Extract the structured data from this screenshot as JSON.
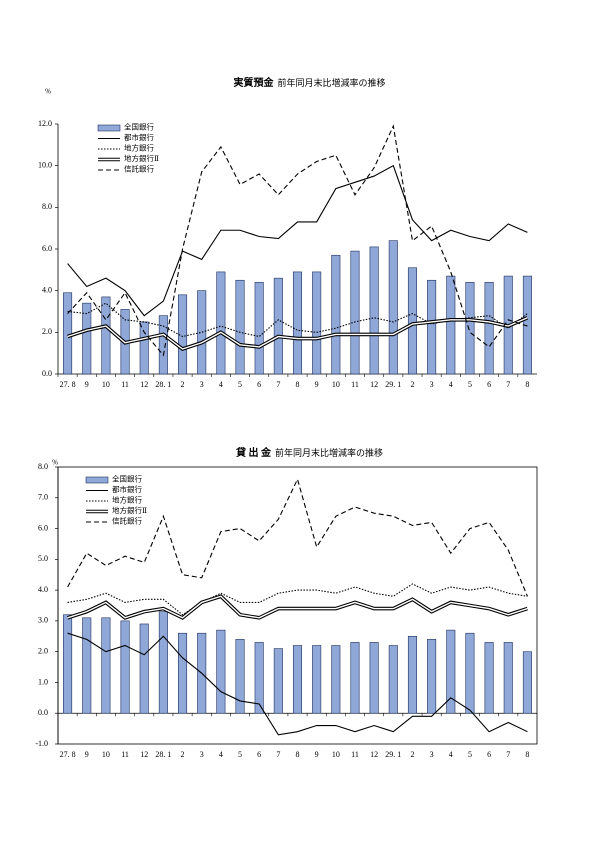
{
  "chart_data": [
    {
      "type": "bar_line",
      "title": "実質預金",
      "subtitle": "前年同月末比増減率の推移",
      "y_unit": "%",
      "categories": [
        "27. 8",
        "9",
        "10",
        "11",
        "12",
        "28. 1",
        "2",
        "3",
        "4",
        "5",
        "6",
        "7",
        "8",
        "9",
        "10",
        "11",
        "12",
        "29. 1",
        "2",
        "3",
        "4",
        "5",
        "6",
        "7",
        "8"
      ],
      "ylim": [
        0,
        12
      ],
      "yticks": [
        {
          "value": 0,
          "label": "0.0"
        },
        {
          "value": 2,
          "label": "2.0"
        },
        {
          "value": 4,
          "label": "4.0"
        },
        {
          "value": 6,
          "label": "6.0"
        },
        {
          "value": 8,
          "label": "8.0"
        },
        {
          "value": 10,
          "label": "10.0"
        },
        {
          "value": 12,
          "label": "12.0"
        }
      ],
      "legend": "upper left",
      "frame": false,
      "series": [
        {
          "name": "全国銀行",
          "type": "bar",
          "color": "#8fa8d8",
          "values": [
            3.9,
            3.4,
            3.7,
            3.1,
            2.5,
            2.8,
            3.8,
            4.0,
            4.9,
            4.5,
            4.4,
            4.6,
            4.9,
            4.9,
            5.7,
            5.9,
            6.1,
            6.4,
            5.1,
            4.5,
            4.7,
            4.4,
            4.4,
            4.7,
            4.7
          ]
        },
        {
          "name": "都市銀行",
          "type": "line",
          "style": "solid",
          "color": "#000000",
          "values": [
            5.3,
            4.2,
            4.6,
            4.0,
            2.8,
            3.5,
            5.9,
            5.5,
            6.9,
            6.9,
            6.6,
            6.5,
            7.3,
            7.3,
            8.9,
            9.2,
            9.5,
            10.0,
            7.4,
            6.4,
            6.9,
            6.6,
            6.4,
            7.2,
            6.8
          ]
        },
        {
          "name": "地方銀行",
          "type": "line",
          "style": "dotted",
          "color": "#000000",
          "values": [
            3.0,
            2.9,
            3.4,
            2.6,
            2.5,
            2.3,
            1.8,
            2.0,
            2.3,
            2.0,
            1.8,
            2.6,
            2.1,
            2.0,
            2.2,
            2.5,
            2.7,
            2.5,
            2.9,
            2.4,
            2.6,
            2.7,
            2.8,
            2.2,
            2.9
          ]
        },
        {
          "name": "地方銀行Ⅱ",
          "type": "line",
          "style": "double",
          "color": "#000000",
          "values": [
            1.8,
            2.1,
            2.3,
            1.5,
            1.7,
            1.9,
            1.2,
            1.5,
            2.0,
            1.4,
            1.3,
            1.8,
            1.7,
            1.7,
            1.9,
            1.9,
            1.9,
            1.9,
            2.4,
            2.5,
            2.6,
            2.6,
            2.5,
            2.3,
            2.7
          ]
        },
        {
          "name": "信託銀行",
          "type": "line",
          "style": "dashed",
          "color": "#000000",
          "values": [
            2.9,
            3.9,
            2.6,
            3.9,
            2.0,
            0.9,
            6.0,
            9.7,
            10.9,
            9.1,
            9.6,
            8.6,
            9.6,
            10.2,
            10.5,
            8.6,
            9.9,
            11.9,
            6.4,
            7.1,
            4.9,
            2.0,
            1.3,
            2.6,
            2.3
          ]
        }
      ]
    },
    {
      "type": "bar_line",
      "title": "貸 出 金",
      "subtitle": "前年同月末比増減率の推移",
      "y_unit": "%",
      "categories": [
        "27. 8",
        "9",
        "10",
        "11",
        "12",
        "28. 1",
        "2",
        "3",
        "4",
        "5",
        "6",
        "7",
        "8",
        "9",
        "10",
        "11",
        "12",
        "29. 1",
        "2",
        "3",
        "4",
        "5",
        "6",
        "7",
        "8"
      ],
      "ylim": [
        -1,
        8
      ],
      "yticks": [
        {
          "value": -1,
          "label": "-1.0"
        },
        {
          "value": 0,
          "label": "0.0"
        },
        {
          "value": 1,
          "label": "1.0"
        },
        {
          "value": 2,
          "label": "2.0"
        },
        {
          "value": 3,
          "label": "3.0"
        },
        {
          "value": 4,
          "label": "4.0"
        },
        {
          "value": 5,
          "label": "5.0"
        },
        {
          "value": 6,
          "label": "6.0"
        },
        {
          "value": 7,
          "label": "7.0"
        },
        {
          "value": 8,
          "label": "8.0"
        }
      ],
      "legend": "upper left",
      "frame": true,
      "series": [
        {
          "name": "全国銀行",
          "type": "bar",
          "color": "#8fa8d8",
          "values": [
            3.2,
            3.1,
            3.1,
            3.0,
            2.9,
            3.3,
            2.6,
            2.6,
            2.7,
            2.4,
            2.3,
            2.1,
            2.2,
            2.2,
            2.2,
            2.3,
            2.3,
            2.2,
            2.5,
            2.4,
            2.7,
            2.6,
            2.3,
            2.3,
            2.0
          ]
        },
        {
          "name": "都市銀行",
          "type": "line",
          "style": "solid",
          "color": "#000000",
          "values": [
            2.6,
            2.4,
            2.0,
            2.2,
            1.9,
            2.5,
            1.8,
            1.3,
            0.7,
            0.4,
            0.3,
            -0.7,
            -0.6,
            -0.4,
            -0.4,
            -0.6,
            -0.4,
            -0.6,
            -0.1,
            -0.1,
            0.5,
            0.1,
            -0.6,
            -0.3,
            -0.6
          ]
        },
        {
          "name": "地方銀行",
          "type": "line",
          "style": "dotted",
          "color": "#000000",
          "values": [
            3.6,
            3.7,
            3.9,
            3.6,
            3.7,
            3.7,
            3.2,
            3.6,
            3.9,
            3.6,
            3.6,
            3.9,
            4.0,
            4.0,
            3.9,
            4.1,
            3.9,
            3.8,
            4.2,
            3.9,
            4.1,
            4.0,
            4.1,
            3.9,
            3.8
          ]
        },
        {
          "name": "地方銀行Ⅱ",
          "type": "line",
          "style": "double",
          "color": "#000000",
          "values": [
            3.1,
            3.3,
            3.6,
            3.1,
            3.3,
            3.4,
            3.1,
            3.6,
            3.8,
            3.2,
            3.1,
            3.4,
            3.4,
            3.4,
            3.4,
            3.6,
            3.4,
            3.4,
            3.7,
            3.3,
            3.6,
            3.5,
            3.4,
            3.2,
            3.4
          ]
        },
        {
          "name": "信託銀行",
          "type": "line",
          "style": "dashed",
          "color": "#000000",
          "values": [
            4.1,
            5.2,
            4.8,
            5.1,
            4.9,
            6.4,
            4.5,
            4.4,
            5.9,
            6.0,
            5.6,
            6.3,
            7.6,
            5.4,
            6.4,
            6.7,
            6.5,
            6.4,
            6.1,
            6.2,
            5.2,
            6.0,
            6.2,
            5.3,
            3.8
          ]
        }
      ]
    }
  ]
}
